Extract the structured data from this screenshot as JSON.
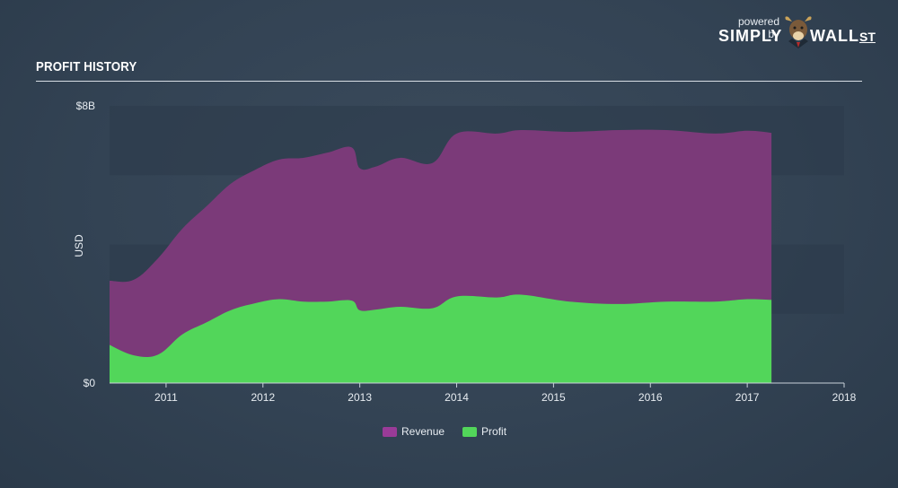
{
  "branding": {
    "powered_by": "powered by",
    "name_left": "SIMPLY",
    "name_right": "WALL",
    "name_suffix": "ST",
    "logo_icon": "bull-icon"
  },
  "colors": {
    "revenue": "#7b3a79",
    "profit": "#52d65a",
    "band": "#2c3b4b",
    "axis": "#c9d1da"
  },
  "chart_data": {
    "type": "area",
    "title": "PROFIT HISTORY",
    "ylabel": "USD",
    "xlabel": "",
    "ylim": [
      0,
      8
    ],
    "y_ticks": [
      {
        "value": 0,
        "label": "$0"
      },
      {
        "value": 8,
        "label": "$8B"
      }
    ],
    "x_ticks": [
      "2011",
      "2012",
      "2013",
      "2014",
      "2015",
      "2016",
      "2017",
      "2018"
    ],
    "x_range": [
      "2010-06",
      "2018-01"
    ],
    "grid": "alternating bands",
    "legend_position": "bottom-center",
    "series": [
      {
        "name": "Revenue",
        "color": "#7b3a79",
        "points": [
          {
            "x": "2010-06",
            "y": 2.95
          },
          {
            "x": "2010-09",
            "y": 2.98
          },
          {
            "x": "2010-12",
            "y": 3.6
          },
          {
            "x": "2011-03",
            "y": 4.45
          },
          {
            "x": "2011-06",
            "y": 5.1
          },
          {
            "x": "2011-09",
            "y": 5.75
          },
          {
            "x": "2011-12",
            "y": 6.15
          },
          {
            "x": "2012-03",
            "y": 6.45
          },
          {
            "x": "2012-06",
            "y": 6.5
          },
          {
            "x": "2012-09",
            "y": 6.65
          },
          {
            "x": "2012-12",
            "y": 6.8
          },
          {
            "x": "2013-01",
            "y": 6.2
          },
          {
            "x": "2013-03",
            "y": 6.25
          },
          {
            "x": "2013-06",
            "y": 6.5
          },
          {
            "x": "2013-10",
            "y": 6.35
          },
          {
            "x": "2014-01",
            "y": 7.2
          },
          {
            "x": "2014-06",
            "y": 7.2
          },
          {
            "x": "2014-09",
            "y": 7.3
          },
          {
            "x": "2015-03",
            "y": 7.25
          },
          {
            "x": "2015-09",
            "y": 7.3
          },
          {
            "x": "2016-03",
            "y": 7.3
          },
          {
            "x": "2016-09",
            "y": 7.2
          },
          {
            "x": "2017-01",
            "y": 7.28
          },
          {
            "x": "2017-04",
            "y": 7.22
          }
        ]
      },
      {
        "name": "Profit",
        "color": "#52d65a",
        "points": [
          {
            "x": "2010-06",
            "y": 1.1
          },
          {
            "x": "2010-09",
            "y": 0.8
          },
          {
            "x": "2010-12",
            "y": 0.82
          },
          {
            "x": "2011-03",
            "y": 1.4
          },
          {
            "x": "2011-06",
            "y": 1.75
          },
          {
            "x": "2011-09",
            "y": 2.1
          },
          {
            "x": "2011-12",
            "y": 2.3
          },
          {
            "x": "2012-03",
            "y": 2.42
          },
          {
            "x": "2012-06",
            "y": 2.35
          },
          {
            "x": "2012-09",
            "y": 2.35
          },
          {
            "x": "2012-12",
            "y": 2.38
          },
          {
            "x": "2013-01",
            "y": 2.1
          },
          {
            "x": "2013-03",
            "y": 2.12
          },
          {
            "x": "2013-06",
            "y": 2.2
          },
          {
            "x": "2013-10",
            "y": 2.16
          },
          {
            "x": "2014-01",
            "y": 2.5
          },
          {
            "x": "2014-06",
            "y": 2.47
          },
          {
            "x": "2014-09",
            "y": 2.55
          },
          {
            "x": "2015-03",
            "y": 2.35
          },
          {
            "x": "2015-09",
            "y": 2.28
          },
          {
            "x": "2016-03",
            "y": 2.35
          },
          {
            "x": "2016-09",
            "y": 2.35
          },
          {
            "x": "2017-01",
            "y": 2.42
          },
          {
            "x": "2017-04",
            "y": 2.4
          }
        ]
      }
    ]
  }
}
